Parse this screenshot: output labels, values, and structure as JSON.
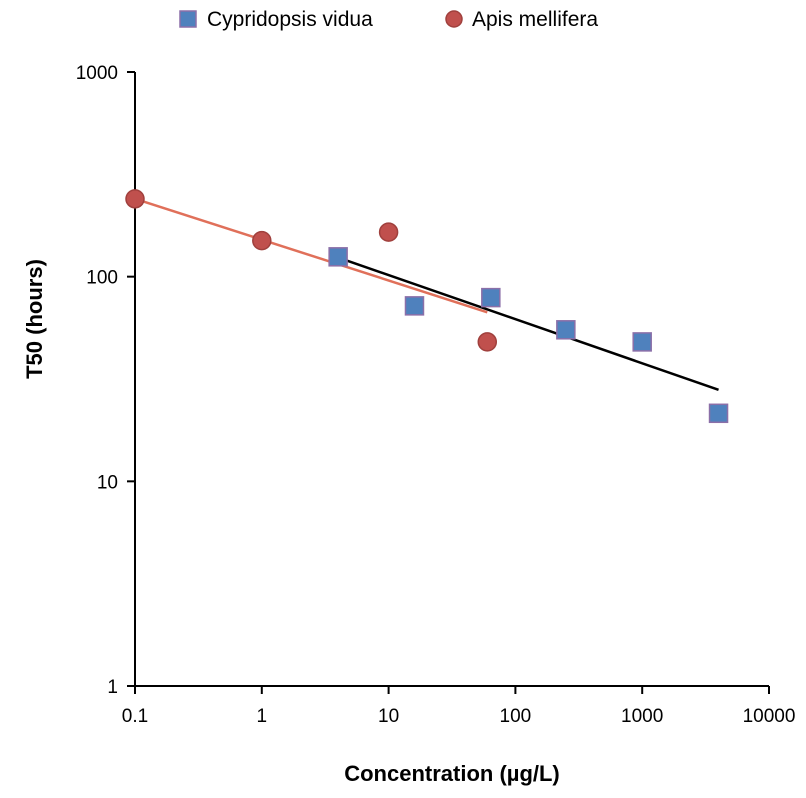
{
  "chart_data": {
    "type": "scatter",
    "xlabel": "Concentration (µg/L)",
    "ylabel": "T50 (hours)",
    "x_scale": "log",
    "y_scale": "log",
    "xlim": [
      0.1,
      10000
    ],
    "ylim": [
      1,
      1000
    ],
    "x_ticks": [
      0.1,
      1,
      10,
      100,
      1000,
      10000
    ],
    "x_tick_labels": [
      "0.1",
      "1",
      "10",
      "100",
      "1000",
      "10000"
    ],
    "y_ticks": [
      1,
      10,
      100,
      1000
    ],
    "y_tick_labels": [
      "1",
      "10",
      "100",
      "1000"
    ],
    "grid": false,
    "legend_position": "top",
    "series": [
      {
        "name": "Cypridopsis vidua",
        "marker": "square",
        "color": "#4F81BD",
        "edge_color": "#8B6FA8",
        "x": [
          4,
          16,
          64,
          250,
          1000,
          4000
        ],
        "y": [
          125,
          72,
          79,
          55,
          48,
          21.5
        ],
        "trendline": {
          "color": "#000000",
          "x": [
            4,
            4000
          ],
          "y": [
            124,
            28
          ]
        }
      },
      {
        "name": "Apis mellifera",
        "marker": "circle",
        "color": "#C0504D",
        "edge_color": "#A0403D",
        "x": [
          0.1,
          1,
          10,
          60
        ],
        "y": [
          240,
          150,
          165,
          48
        ],
        "trendline": {
          "color": "#E0705A",
          "x": [
            0.1,
            60
          ],
          "y": [
            240,
            67
          ]
        }
      }
    ]
  }
}
